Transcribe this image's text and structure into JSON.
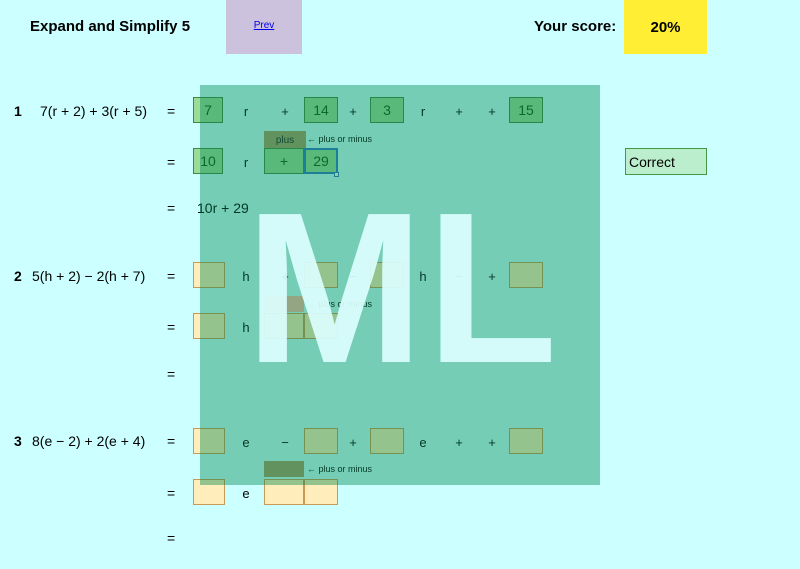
{
  "header": {
    "title": "Expand and Simplify 5",
    "prev_label": "Prev",
    "score_label": "Your score:",
    "score_value": "20%"
  },
  "hint_text": "← plus or minus",
  "watermark_text": "ML",
  "equals": "=",
  "questions": [
    {
      "number": "1",
      "expression": "7(r + 2) + 3(r + 5)",
      "line1": {
        "a": "7",
        "var1": "r",
        "op1": "+",
        "b": "14",
        "op2": "+",
        "c": "3",
        "var2": "r",
        "op3": "+",
        "op4": "+",
        "d": "15"
      },
      "line2": {
        "coef": "10",
        "var": "r",
        "sign_select": "plus",
        "sign": "+",
        "const": "29"
      },
      "final": "10r + 29",
      "status": "Correct"
    },
    {
      "number": "2",
      "expression": "5(h + 2) − 2(h + 7)",
      "line1": {
        "var1": "h",
        "op1": "+",
        "op2": "−",
        "var2": "h",
        "op3": "−",
        "op4": "+"
      },
      "line2": {
        "var": "h"
      }
    },
    {
      "number": "3",
      "expression": "8(e − 2) + 2(e + 4)",
      "line1": {
        "var1": "e",
        "op1": "−",
        "op2": "+",
        "var2": "e",
        "op3": "+",
        "op4": "+"
      },
      "line2": {
        "var": "e"
      }
    }
  ]
}
